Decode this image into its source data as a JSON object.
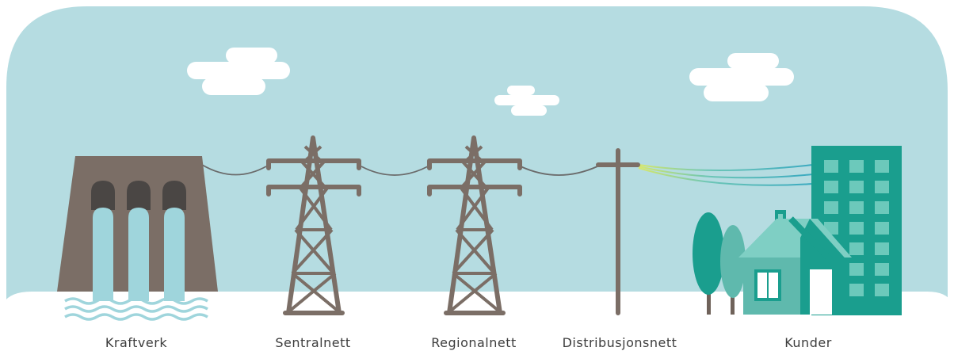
{
  "nodes": [
    {
      "label": "Kraftverk"
    },
    {
      "label": "Sentralnett"
    },
    {
      "label": "Regionalnett"
    },
    {
      "label": "Distribusjonsnett"
    },
    {
      "label": "Kunder"
    }
  ]
}
